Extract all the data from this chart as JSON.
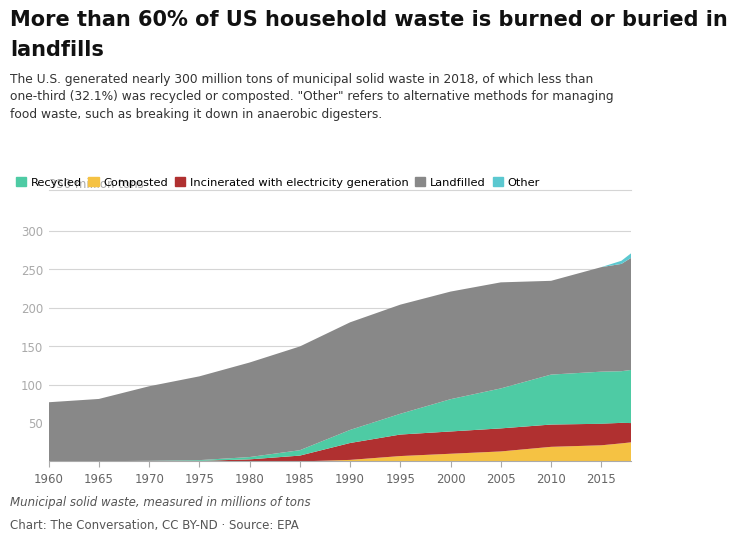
{
  "title_line1": "More than 60% of US household waste is burned or buried in",
  "title_line2": "landfills",
  "subtitle": "The U.S. generated nearly 300 million tons of municipal solid waste in 2018, of which less than\none-third (32.1%) was recycled or composted. \"Other\" refers to alternative methods for managing\nfood waste, such as breaking it down in anaerobic digesters.",
  "ylabel": "350 million tons",
  "caption1": "Municipal solid waste, measured in millions of tons",
  "caption2": "Chart: The Conversation, CC BY-ND · Source: EPA",
  "years": [
    1960,
    1965,
    1970,
    1975,
    1980,
    1985,
    1990,
    1995,
    2000,
    2005,
    2010,
    2015,
    2017,
    2018
  ],
  "recycled": [
    0.0,
    0.2,
    0.4,
    1.0,
    3.0,
    7.0,
    17.0,
    27.0,
    42.0,
    52.0,
    65.0,
    67.8,
    67.2,
    69.2
  ],
  "composted": [
    0.0,
    0.0,
    0.0,
    0.0,
    0.0,
    0.0,
    2.0,
    7.0,
    10.0,
    13.0,
    19.0,
    21.0,
    23.5,
    24.9
  ],
  "incinerated": [
    0.0,
    0.1,
    0.4,
    0.7,
    2.7,
    7.6,
    22.0,
    28.0,
    29.0,
    30.0,
    29.0,
    28.0,
    26.7,
    25.0
  ],
  "landfilled": [
    77.0,
    81.0,
    97.0,
    109.0,
    123.0,
    135.0,
    140.0,
    142.0,
    140.0,
    138.0,
    122.0,
    136.0,
    139.6,
    146.1
  ],
  "other": [
    0.0,
    0.0,
    0.0,
    0.0,
    0.0,
    0.0,
    0.0,
    0.0,
    0.0,
    0.0,
    0.0,
    0.0,
    4.1,
    6.0
  ],
  "colors": {
    "recycled": "#4ecba4",
    "composted": "#f5c243",
    "incinerated": "#b03030",
    "landfilled": "#888888",
    "other": "#5bc8d0"
  },
  "legend_labels": [
    "Recycled",
    "Composted",
    "Incinerated with electricity generation",
    "Landfilled",
    "Other"
  ],
  "ylim": [
    0,
    350
  ],
  "yticks": [
    0,
    50,
    100,
    150,
    200,
    250,
    300
  ],
  "xticks": [
    1960,
    1965,
    1970,
    1975,
    1980,
    1985,
    1990,
    1995,
    2000,
    2005,
    2010,
    2015
  ],
  "background_color": "#ffffff",
  "title_fontsize": 15,
  "subtitle_fontsize": 8.8,
  "legend_fontsize": 8.2,
  "axis_label_fontsize": 8.5,
  "tick_fontsize": 8.5,
  "caption_fontsize": 8.5
}
